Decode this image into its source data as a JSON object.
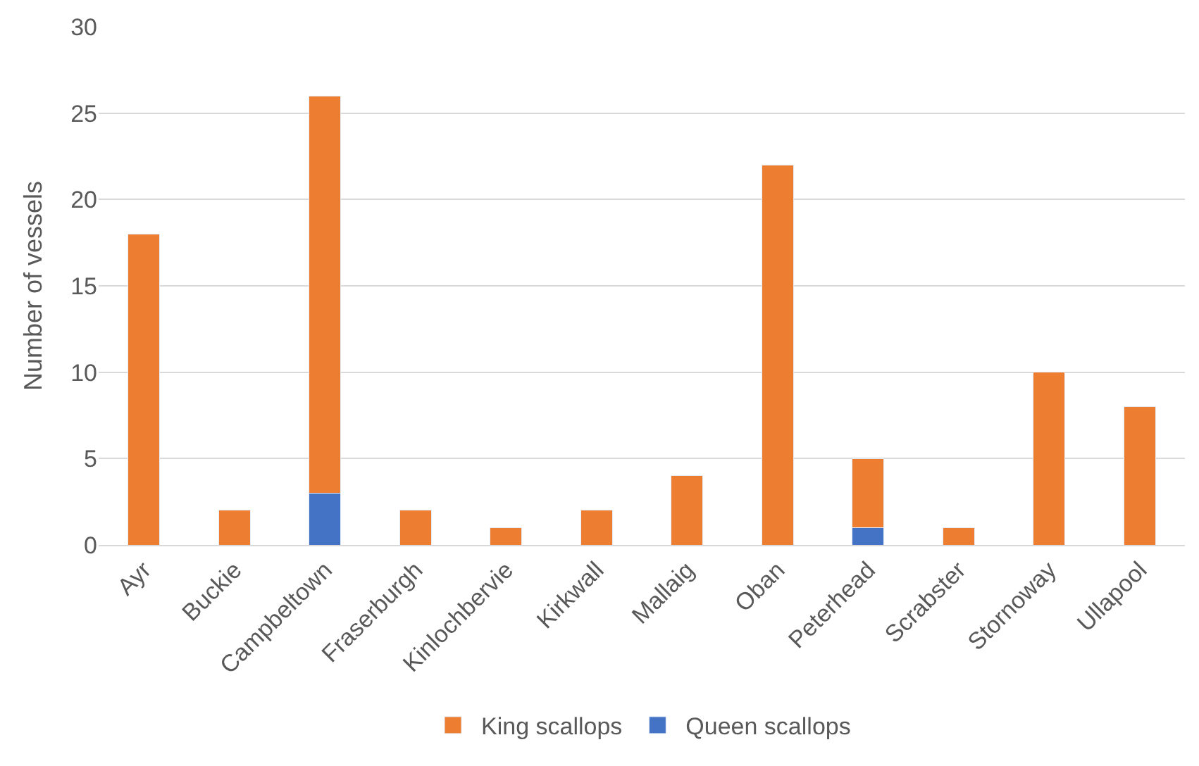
{
  "chart_data": {
    "type": "bar",
    "stacked": true,
    "ylabel": "Number of vessels",
    "categories": [
      "Ayr",
      "Buckie",
      "Campbeltown",
      "Fraserburgh",
      "Kinlochbervie",
      "Kirkwall",
      "Mallaig",
      "Oban",
      "Peterhead",
      "Scrabster",
      "Stornoway",
      "Ullapool"
    ],
    "series": [
      {
        "name": "Queen scallops",
        "color": "#4472c4",
        "values": [
          0,
          0,
          3,
          0,
          0,
          0,
          0,
          0,
          1,
          0,
          0,
          0
        ]
      },
      {
        "name": "King scallops",
        "color": "#ed7d31",
        "values": [
          18,
          2,
          23,
          2,
          1,
          2,
          4,
          22,
          4,
          1,
          10,
          8
        ]
      }
    ],
    "ylim": [
      0,
      30
    ],
    "yticks": [
      0,
      5,
      10,
      15,
      20,
      25,
      30
    ],
    "grid": "y",
    "legend": "bottom"
  }
}
